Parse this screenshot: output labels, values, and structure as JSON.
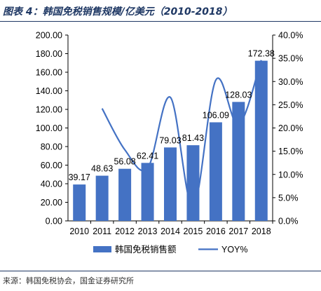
{
  "figure": {
    "title": "图表 4：韩国免税销售规模/亿美元（2010-2018）",
    "source": "来源：韩国免税协会，国金证券研究所"
  },
  "chart_data": {
    "type": "bar",
    "categories": [
      "2010",
      "2011",
      "2012",
      "2013",
      "2014",
      "2015",
      "2016",
      "2017",
      "2018"
    ],
    "series": [
      {
        "name": "韩国免税销售额",
        "type": "bar",
        "axis": "left",
        "values": [
          39.17,
          48.63,
          56.08,
          62.41,
          79.03,
          81.43,
          106.09,
          128.03,
          172.38
        ],
        "labels": [
          "39.17",
          "48.63",
          "56.08",
          "62.41",
          "79.03",
          "81.43",
          "106.09",
          "128.03",
          "172.38"
        ]
      },
      {
        "name": "YOY%",
        "type": "line",
        "axis": "right",
        "smooth": true,
        "values": [
          null,
          24.2,
          15.3,
          11.3,
          26.6,
          3.0,
          30.3,
          20.7,
          34.6
        ]
      }
    ],
    "y_left": {
      "min": 0,
      "max": 200,
      "step": 20,
      "ticks": [
        "0.00",
        "20.00",
        "40.00",
        "60.00",
        "80.00",
        "100.00",
        "120.00",
        "140.00",
        "160.00",
        "180.00",
        "200.00"
      ]
    },
    "y_right": {
      "min": 0,
      "max": 40,
      "step": 5,
      "ticks": [
        "0.0%",
        "5.0%",
        "10.0%",
        "15.0%",
        "20.0%",
        "25.0%",
        "30.0%",
        "35.0%",
        "40.0%"
      ]
    },
    "grid": false,
    "legend_position": "bottom",
    "colors": {
      "bar": "#4472c4",
      "line": "#4472c4",
      "text": "#000000"
    }
  }
}
